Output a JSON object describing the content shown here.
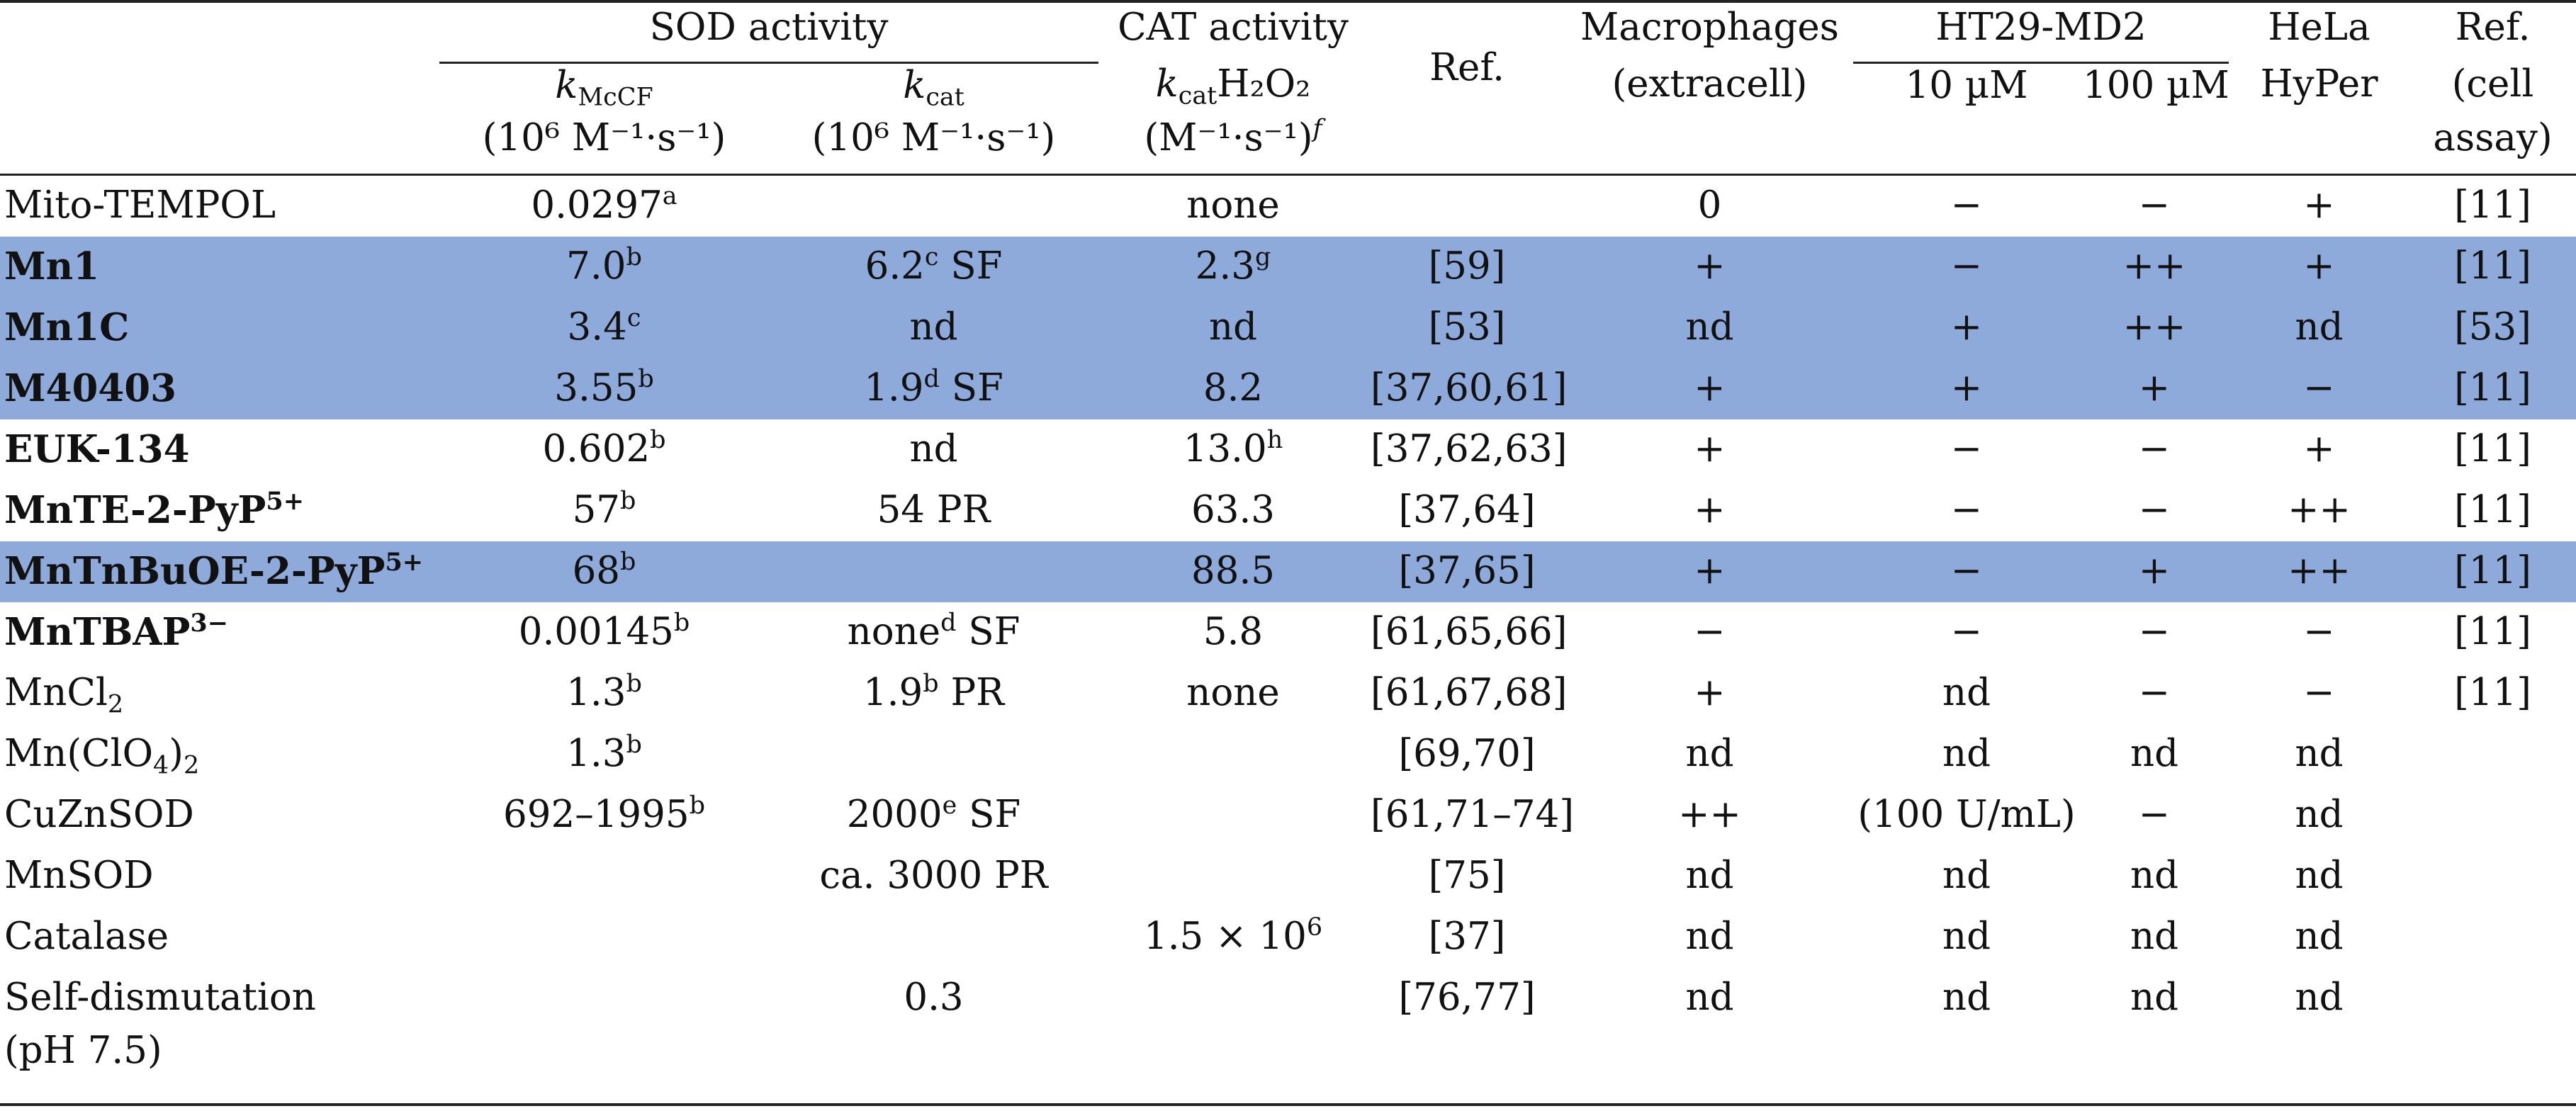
{
  "header": {
    "sod": "SOD activity",
    "cat": "CAT activity",
    "ref": "Ref.",
    "macro1": "Macrophages",
    "macro2": "(extracell)",
    "ht": "HT29-MD2",
    "hela1": "HeLa",
    "hela2": "HyPer",
    "refcell1": "Ref.",
    "refcell2": "(cell",
    "refcell3": "assay)",
    "kmccf_sym": "k",
    "kmccf_sub": "McCF",
    "kmccf_unit": "(10⁶ M⁻¹·s⁻¹)",
    "kcat_sym": "k",
    "kcat_sub": "cat",
    "kcat_unit": "(10⁶ M⁻¹·s⁻¹)",
    "kcath_sym": "k",
    "kcath_sub": "cat",
    "kcath_rest": "H₂O₂",
    "kcath_unit": "(M⁻¹·s⁻¹)",
    "kcath_sup": "f",
    "ht10": "10 µM",
    "ht100": "100 µM"
  },
  "rows": [
    {
      "name": "Mito-TEMPOL",
      "name_sup": "",
      "bold": false,
      "hl": false,
      "kmccf": "0.0297",
      "kmccf_sup": "a",
      "kcat": "",
      "kcat_sup": "",
      "kcat_tail": "",
      "cat": "none",
      "cat_sup": "",
      "ref": "",
      "macro": "0",
      "ht10": "−",
      "ht100": "−",
      "hela": "+",
      "refcell": "[11]"
    },
    {
      "name": "Mn1",
      "name_sup": "",
      "bold": true,
      "hl": true,
      "kmccf": "7.0",
      "kmccf_sup": "b",
      "kcat": "6.2",
      "kcat_sup": "c",
      "kcat_tail": " SF",
      "cat": "2.3",
      "cat_sup": "g",
      "ref": "[59]",
      "macro": "+",
      "ht10": "−",
      "ht100": "++",
      "hela": "+",
      "refcell": "[11]"
    },
    {
      "name": "Mn1C",
      "name_sup": "",
      "bold": true,
      "hl": true,
      "kmccf": "3.4",
      "kmccf_sup": "c",
      "kcat": "nd",
      "kcat_sup": "",
      "kcat_tail": "",
      "cat": "nd",
      "cat_sup": "",
      "ref": "[53]",
      "macro": "nd",
      "ht10": "+",
      "ht100": "++",
      "hela": "nd",
      "refcell": "[53]"
    },
    {
      "name": "M40403",
      "name_sup": "",
      "bold": true,
      "hl": true,
      "kmccf": "3.55",
      "kmccf_sup": "b",
      "kcat": "1.9",
      "kcat_sup": "d",
      "kcat_tail": " SF",
      "cat": "8.2",
      "cat_sup": "",
      "ref": "[37,60,61]",
      "macro": "+",
      "ht10": "+",
      "ht100": "+",
      "hela": "−",
      "refcell": "[11]"
    },
    {
      "name": "EUK-134",
      "name_sup": "",
      "bold": true,
      "hl": false,
      "kmccf": "0.602",
      "kmccf_sup": "b",
      "kcat": "nd",
      "kcat_sup": "",
      "kcat_tail": "",
      "cat": "13.0",
      "cat_sup": "h",
      "ref": "[37,62,63]",
      "macro": "+",
      "ht10": "−",
      "ht100": "−",
      "hela": "+",
      "refcell": "[11]"
    },
    {
      "name": "MnTE-2-PyP",
      "name_sup": "5+",
      "bold": true,
      "hl": false,
      "kmccf": "57",
      "kmccf_sup": "b",
      "kcat": "54 PR",
      "kcat_sup": "",
      "kcat_tail": "",
      "cat": "63.3",
      "cat_sup": "",
      "ref": "[37,64]",
      "macro": "+",
      "ht10": "−",
      "ht100": "−",
      "hela": "++",
      "refcell": "[11]"
    },
    {
      "name": "MnTnBuOE-2-PyP",
      "name_sup": "5+",
      "bold": true,
      "hl": true,
      "kmccf": "68",
      "kmccf_sup": "b",
      "kcat": "",
      "kcat_sup": "",
      "kcat_tail": "",
      "cat": "88.5",
      "cat_sup": "",
      "ref": "[37,65]",
      "macro": "+",
      "ht10": "−",
      "ht100": "+",
      "hela": "++",
      "refcell": "[11]"
    },
    {
      "name": "MnTBAP",
      "name_sup": "3−",
      "bold": true,
      "hl": false,
      "kmccf": "0.00145",
      "kmccf_sup": "b",
      "kcat": "none",
      "kcat_sup": "d",
      "kcat_tail": " SF",
      "cat": "5.8",
      "cat_sup": "",
      "ref": "[61,65,66]",
      "macro": "−",
      "ht10": "−",
      "ht100": "−",
      "hela": "−",
      "refcell": "[11]"
    },
    {
      "name": "MnCl",
      "name_sub": "2",
      "name_sup": "",
      "bold": false,
      "hl": false,
      "kmccf": "1.3",
      "kmccf_sup": "b",
      "kcat": "1.9",
      "kcat_sup": "b",
      "kcat_tail": " PR",
      "cat": "none",
      "cat_sup": "",
      "ref": "[61,67,68]",
      "macro": "+",
      "ht10": "nd",
      "ht100": "−",
      "hela": "−",
      "refcell": "[11]"
    },
    {
      "name": "Mn(ClO",
      "name_sub": "4",
      "name_after": ")",
      "name_sub2": "2",
      "name_sup": "",
      "bold": false,
      "hl": false,
      "kmccf": "1.3",
      "kmccf_sup": "b",
      "kcat": "",
      "kcat_sup": "",
      "kcat_tail": "",
      "cat": "",
      "cat_sup": "",
      "ref": "[69,70]",
      "macro": "nd",
      "ht10": "nd",
      "ht100": "nd",
      "hela": "nd",
      "refcell": ""
    },
    {
      "name": "CuZnSOD",
      "name_sup": "",
      "bold": false,
      "hl": false,
      "kmccf": "692–1995",
      "kmccf_sup": "b",
      "kcat": "2000",
      "kcat_sup": "e",
      "kcat_tail": " SF",
      "cat": "",
      "cat_sup": "",
      "ref": "[61,71–74]",
      "macro": "++",
      "ht10": "(100 U/mL)",
      "ht100": "−",
      "hela": "nd",
      "refcell": ""
    },
    {
      "name": "MnSOD",
      "name_sup": "",
      "bold": false,
      "hl": false,
      "kmccf": "",
      "kmccf_sup": "",
      "kcat": "ca. 3000 PR",
      "kcat_sup": "",
      "kcat_tail": "",
      "cat": "",
      "cat_sup": "",
      "ref": "[75]",
      "macro": "nd",
      "ht10": "nd",
      "ht100": "nd",
      "hela": "nd",
      "refcell": ""
    },
    {
      "name": "Catalase",
      "name_sup": "",
      "bold": false,
      "hl": false,
      "kmccf": "",
      "kmccf_sup": "",
      "kcat": "",
      "kcat_sup": "",
      "kcat_tail": "",
      "cat": "1.5 × 10",
      "cat_sup": "6",
      "ref": "[37]",
      "macro": "nd",
      "ht10": "nd",
      "ht100": "nd",
      "hela": "nd",
      "refcell": ""
    },
    {
      "name": "Self-dismutation",
      "name_sup": "",
      "bold": false,
      "hl": false,
      "kmccf": "",
      "kmccf_sup": "",
      "kcat": "0.3",
      "kcat_sup": "",
      "kcat_tail": "",
      "cat": "",
      "cat_sup": "",
      "ref": "[76,77]",
      "macro": "nd",
      "ht10": "nd",
      "ht100": "nd",
      "hela": "nd",
      "refcell": ""
    }
  ],
  "last_line": "(pH 7.5)"
}
